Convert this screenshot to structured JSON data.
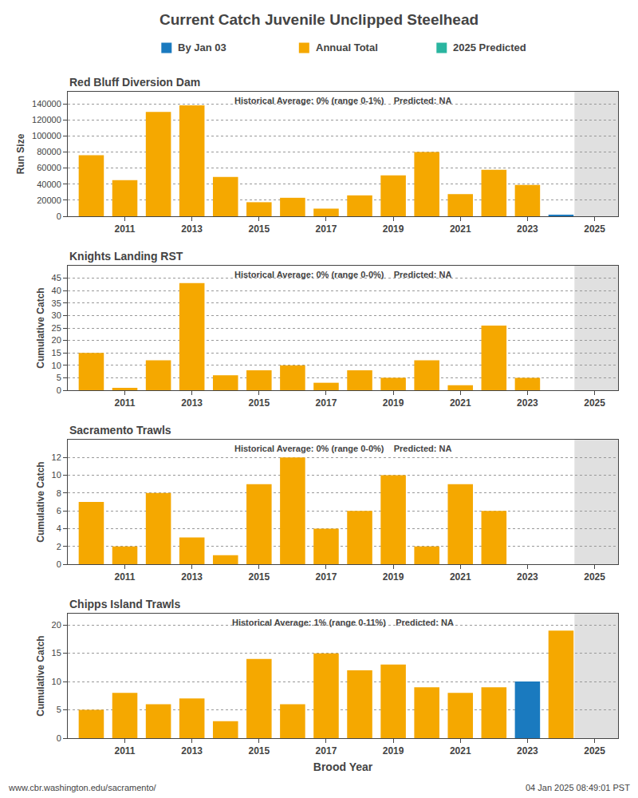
{
  "title": "Current Catch Juvenile Unclipped Steelhead",
  "legend_entries": [
    {
      "name": "By Jan 03",
      "color": "#1a7abf"
    },
    {
      "name": "Annual Total",
      "color": "#f5a800"
    },
    {
      "name": "2025 Predicted",
      "color": "#2ab5a0"
    }
  ],
  "annotations": [
    "www.cbr.washington.edu/sacramento/",
    "04 Jan 2025 08:49:01 PST"
  ],
  "chart_data": [
    {
      "type": "bar",
      "title": "Red Bluff Diversion Dam",
      "ylabel": "Run Size",
      "annotation": "Historical Average: 0% (range 0-1%)    Predicted: NA",
      "x": [
        2010,
        2011,
        2012,
        2013,
        2014,
        2015,
        2016,
        2017,
        2018,
        2019,
        2020,
        2021,
        2022,
        2023,
        2024
      ],
      "values": [
        76000,
        45000,
        130000,
        138000,
        49000,
        17500,
        23000,
        9500,
        26000,
        51000,
        80000,
        27500,
        58000,
        39000,
        1000
      ],
      "colors": [
        "#f5a800",
        "#f5a800",
        "#f5a800",
        "#f5a800",
        "#f5a800",
        "#f5a800",
        "#f5a800",
        "#f5a800",
        "#f5a800",
        "#f5a800",
        "#f5a800",
        "#f5a800",
        "#f5a800",
        "#f5a800",
        "#1a7abf"
      ],
      "xlim": [
        2009.3,
        2025.7
      ],
      "xticks": [
        2011,
        2013,
        2015,
        2017,
        2019,
        2021,
        2023,
        2025
      ],
      "ylim": [
        0,
        155000
      ],
      "yticks": [
        0,
        20000,
        40000,
        60000,
        80000,
        100000,
        120000,
        140000
      ],
      "shaded": {
        "from": 2024.4,
        "color": "#e0e0e0"
      },
      "grid": true
    },
    {
      "type": "bar",
      "title": "Knights Landing RST",
      "ylabel": "Cumulative Catch",
      "annotation": "Historical Average: 0% (range 0-0%)    Predicted: NA",
      "x": [
        2010,
        2011,
        2012,
        2013,
        2014,
        2015,
        2016,
        2017,
        2018,
        2019,
        2020,
        2021,
        2022,
        2023,
        2024
      ],
      "values": [
        15,
        1,
        12,
        43,
        6,
        8,
        10,
        3,
        8,
        5,
        12,
        2,
        26,
        5,
        0
      ],
      "colors": [
        "#f5a800",
        "#f5a800",
        "#f5a800",
        "#f5a800",
        "#f5a800",
        "#f5a800",
        "#f5a800",
        "#f5a800",
        "#f5a800",
        "#f5a800",
        "#f5a800",
        "#f5a800",
        "#f5a800",
        "#f5a800",
        "#f5a800"
      ],
      "xlim": [
        2009.3,
        2025.7
      ],
      "xticks": [
        2011,
        2013,
        2015,
        2017,
        2019,
        2021,
        2023,
        2025
      ],
      "ylim": [
        0,
        50
      ],
      "yticks": [
        0,
        5,
        10,
        15,
        20,
        25,
        30,
        35,
        40,
        45
      ],
      "shaded": {
        "from": 2024.4,
        "color": "#e0e0e0"
      },
      "grid": true
    },
    {
      "type": "bar",
      "title": "Sacramento Trawls",
      "ylabel": "Cumulative Catch",
      "annotation": "Historical Average: 0% (range 0-0%)    Predicted: NA",
      "x": [
        2010,
        2011,
        2012,
        2013,
        2014,
        2015,
        2016,
        2017,
        2018,
        2019,
        2020,
        2021,
        2022,
        2023,
        2024
      ],
      "values": [
        7,
        2,
        8,
        3,
        1,
        9,
        12,
        4,
        6,
        10,
        2,
        9,
        6,
        0,
        0
      ],
      "colors": [
        "#f5a800",
        "#f5a800",
        "#f5a800",
        "#f5a800",
        "#f5a800",
        "#f5a800",
        "#f5a800",
        "#f5a800",
        "#f5a800",
        "#f5a800",
        "#f5a800",
        "#f5a800",
        "#f5a800",
        "#f5a800",
        "#f5a800"
      ],
      "xlim": [
        2009.3,
        2025.7
      ],
      "xticks": [
        2011,
        2013,
        2015,
        2017,
        2019,
        2021,
        2023,
        2025
      ],
      "ylim": [
        0,
        14
      ],
      "yticks": [
        0,
        2,
        4,
        6,
        8,
        10,
        12
      ],
      "shaded": {
        "from": 2024.4,
        "color": "#e0e0e0"
      },
      "grid": true
    },
    {
      "type": "bar",
      "title": "Chipps Island Trawls",
      "ylabel": "Cumulative Catch",
      "xlabel": "Brood Year",
      "annotation": "Historical Average: 1% (range 0-11%)    Predicted: NA",
      "x": [
        2010,
        2011,
        2012,
        2013,
        2014,
        2015,
        2016,
        2017,
        2018,
        2019,
        2020,
        2021,
        2022,
        2023,
        2024
      ],
      "values": [
        5,
        8,
        6,
        7,
        3,
        14,
        6,
        15,
        12,
        13,
        9,
        8,
        9,
        10,
        19
      ],
      "colors": [
        "#f5a800",
        "#f5a800",
        "#f5a800",
        "#f5a800",
        "#f5a800",
        "#f5a800",
        "#f5a800",
        "#f5a800",
        "#f5a800",
        "#f5a800",
        "#f5a800",
        "#f5a800",
        "#f5a800",
        "#1a7abf",
        "#f5a800"
      ],
      "xlim": [
        2009.3,
        2025.7
      ],
      "xticks": [
        2011,
        2013,
        2015,
        2017,
        2019,
        2021,
        2023,
        2025
      ],
      "ylim": [
        0,
        22
      ],
      "yticks": [
        0,
        5,
        10,
        15,
        20
      ],
      "shaded": {
        "from": 2024.4,
        "color": "#e0e0e0"
      },
      "grid": true
    }
  ]
}
